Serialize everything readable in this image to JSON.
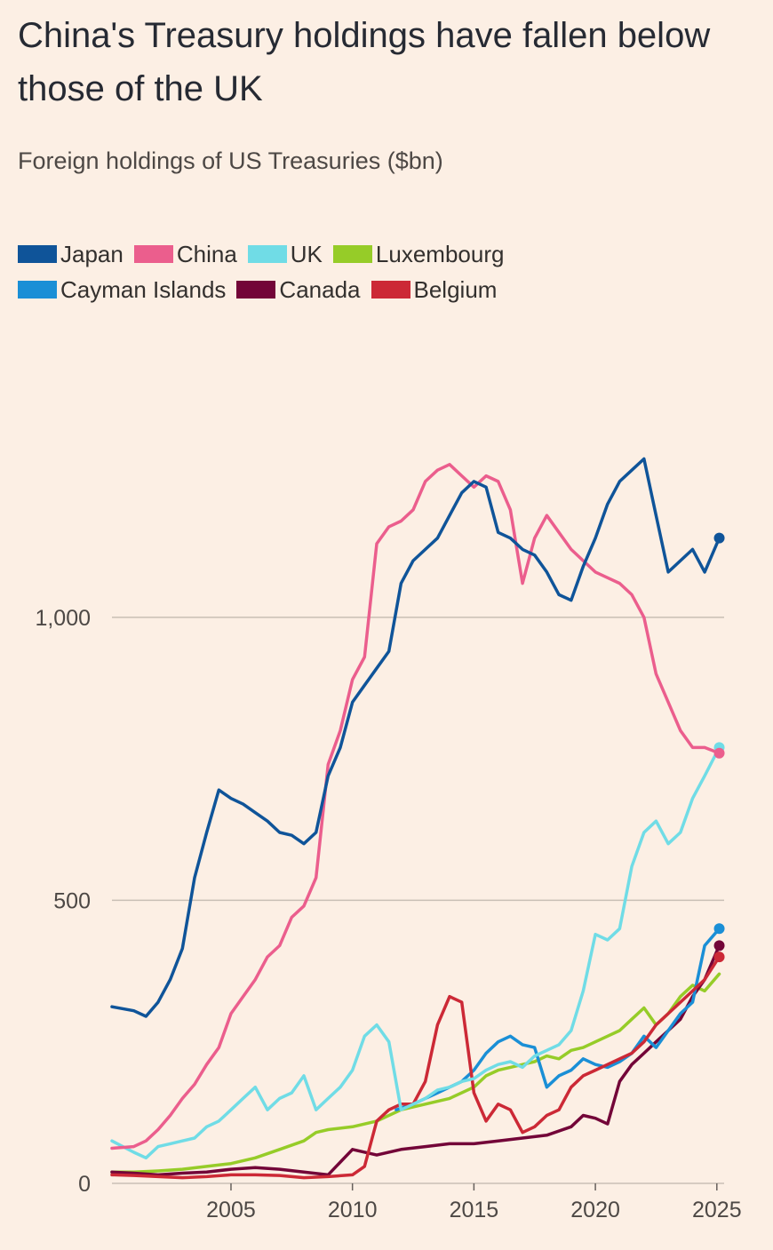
{
  "header": {
    "title": "China's Treasury holdings have fallen below those of the UK",
    "subtitle": "Foreign holdings of US Treasuries ($bn)"
  },
  "legend": [
    {
      "label": "Japan",
      "color": "#0f5499"
    },
    {
      "label": "China",
      "color": "#eb5e8d"
    },
    {
      "label": "UK",
      "color": "#70dce6"
    },
    {
      "label": "Luxembourg",
      "color": "#96cc28"
    },
    {
      "label": "Cayman Islands",
      "color": "#1a8fd6"
    },
    {
      "label": "Canada",
      "color": "#730538"
    },
    {
      "label": "Belgium",
      "color": "#cc2936"
    }
  ],
  "chart_data": {
    "type": "line",
    "title": "China's Treasury holdings have fallen below those of the UK",
    "subtitle": "Foreign holdings of US Treasuries ($bn)",
    "xlim": [
      2000.1,
      2025.3
    ],
    "ylim": [
      0,
      1400
    ],
    "x_ticks": [
      2005,
      2010,
      2015,
      2020,
      2025
    ],
    "x_tick_labels": [
      "2005",
      "2010",
      "2015",
      "2020",
      "2025"
    ],
    "y_ticks": [
      0,
      500,
      1000
    ],
    "y_tick_labels": [
      "0",
      "500",
      "1,000"
    ],
    "grid": true,
    "legend_position": "top-left",
    "series": [
      {
        "name": "Japan",
        "color": "#0f5499",
        "end_marker": true,
        "x": [
          2000.1,
          2001.0,
          2001.5,
          2002.0,
          2002.5,
          2003.0,
          2003.5,
          2004.0,
          2004.5,
          2005.0,
          2005.5,
          2006.0,
          2006.5,
          2007.0,
          2007.5,
          2008.0,
          2008.5,
          2009.0,
          2009.5,
          2010.0,
          2010.5,
          2011.0,
          2011.5,
          2012.0,
          2012.5,
          2013.0,
          2013.5,
          2014.0,
          2014.5,
          2015.0,
          2015.5,
          2016.0,
          2016.5,
          2017.0,
          2017.5,
          2018.0,
          2018.5,
          2019.0,
          2019.5,
          2020.0,
          2020.5,
          2021.0,
          2021.5,
          2022.0,
          2022.5,
          2023.0,
          2023.5,
          2024.0,
          2024.5,
          2025.1
        ],
        "values": [
          312,
          305,
          295,
          320,
          360,
          415,
          540,
          620,
          695,
          680,
          670,
          655,
          640,
          620,
          615,
          600,
          620,
          720,
          770,
          850,
          880,
          910,
          940,
          1060,
          1100,
          1120,
          1140,
          1180,
          1220,
          1240,
          1230,
          1150,
          1140,
          1120,
          1110,
          1080,
          1040,
          1030,
          1090,
          1140,
          1200,
          1240,
          1260,
          1280,
          1180,
          1080,
          1100,
          1120,
          1080,
          1140
        ]
      },
      {
        "name": "China",
        "color": "#eb5e8d",
        "end_marker": true,
        "x": [
          2000.1,
          2001.0,
          2001.5,
          2002.0,
          2002.5,
          2003.0,
          2003.5,
          2004.0,
          2004.5,
          2005.0,
          2005.5,
          2006.0,
          2006.5,
          2007.0,
          2007.5,
          2008.0,
          2008.5,
          2009.0,
          2009.5,
          2010.0,
          2010.5,
          2011.0,
          2011.5,
          2012.0,
          2012.5,
          2013.0,
          2013.5,
          2014.0,
          2014.5,
          2015.0,
          2015.5,
          2016.0,
          2016.5,
          2017.0,
          2017.5,
          2018.0,
          2018.5,
          2019.0,
          2019.5,
          2020.0,
          2020.5,
          2021.0,
          2021.5,
          2022.0,
          2022.5,
          2023.0,
          2023.5,
          2024.0,
          2024.5,
          2025.1
        ],
        "values": [
          62,
          65,
          75,
          95,
          120,
          150,
          175,
          210,
          240,
          300,
          330,
          360,
          400,
          420,
          470,
          490,
          540,
          740,
          800,
          890,
          930,
          1130,
          1160,
          1170,
          1190,
          1240,
          1260,
          1270,
          1250,
          1230,
          1250,
          1240,
          1190,
          1060,
          1140,
          1180,
          1150,
          1120,
          1100,
          1080,
          1070,
          1060,
          1040,
          1000,
          900,
          850,
          800,
          770,
          770,
          760
        ]
      },
      {
        "name": "UK",
        "color": "#70dce6",
        "end_marker": true,
        "x": [
          2000.1,
          2001.0,
          2001.5,
          2002.0,
          2002.5,
          2003.0,
          2003.5,
          2004.0,
          2004.5,
          2005.0,
          2005.5,
          2006.0,
          2006.5,
          2007.0,
          2007.5,
          2008.0,
          2008.5,
          2009.0,
          2009.5,
          2010.0,
          2010.5,
          2011.0,
          2011.5,
          2012.0,
          2012.5,
          2013.0,
          2013.5,
          2014.0,
          2014.5,
          2015.0,
          2015.5,
          2016.0,
          2016.5,
          2017.0,
          2017.5,
          2018.0,
          2018.5,
          2019.0,
          2019.5,
          2020.0,
          2020.5,
          2021.0,
          2021.5,
          2022.0,
          2022.5,
          2023.0,
          2023.5,
          2024.0,
          2024.5,
          2025.1
        ],
        "values": [
          75,
          55,
          45,
          65,
          70,
          75,
          80,
          100,
          110,
          130,
          150,
          170,
          130,
          150,
          160,
          190,
          130,
          150,
          170,
          200,
          260,
          280,
          250,
          130,
          140,
          150,
          165,
          170,
          180,
          185,
          200,
          210,
          215,
          205,
          225,
          235,
          245,
          270,
          340,
          440,
          430,
          450,
          560,
          620,
          640,
          600,
          620,
          680,
          720,
          770
        ]
      },
      {
        "name": "Luxembourg",
        "color": "#96cc28",
        "end_marker": false,
        "x": [
          2000.1,
          2001.0,
          2002.0,
          2003.0,
          2004.0,
          2005.0,
          2006.0,
          2007.0,
          2008.0,
          2008.5,
          2009.0,
          2010.0,
          2011.0,
          2012.0,
          2013.0,
          2014.0,
          2015.0,
          2015.5,
          2016.0,
          2016.5,
          2017.0,
          2017.5,
          2018.0,
          2018.5,
          2019.0,
          2019.5,
          2020.0,
          2020.5,
          2021.0,
          2021.5,
          2022.0,
          2022.5,
          2023.0,
          2023.5,
          2024.0,
          2024.5,
          2025.1
        ],
        "values": [
          20,
          20,
          22,
          25,
          30,
          35,
          45,
          60,
          75,
          90,
          95,
          100,
          110,
          130,
          140,
          150,
          170,
          190,
          200,
          205,
          210,
          215,
          225,
          220,
          235,
          240,
          250,
          260,
          270,
          290,
          310,
          280,
          300,
          330,
          350,
          340,
          370
        ]
      },
      {
        "name": "Cayman Islands",
        "color": "#1a8fd6",
        "end_marker": true,
        "x": [
          2011.8,
          2012.5,
          2013.0,
          2013.5,
          2014.0,
          2014.5,
          2015.0,
          2015.5,
          2016.0,
          2016.5,
          2017.0,
          2017.5,
          2018.0,
          2018.5,
          2019.0,
          2019.5,
          2020.0,
          2020.5,
          2021.0,
          2021.5,
          2022.0,
          2022.5,
          2023.0,
          2023.5,
          2024.0,
          2024.5,
          2025.1
        ],
        "values": [
          130,
          140,
          150,
          160,
          170,
          180,
          200,
          230,
          250,
          260,
          245,
          240,
          170,
          190,
          200,
          220,
          210,
          205,
          215,
          230,
          260,
          240,
          270,
          300,
          320,
          420,
          450
        ]
      },
      {
        "name": "Canada",
        "color": "#730538",
        "end_marker": true,
        "x": [
          2000.1,
          2001.0,
          2002.0,
          2003.0,
          2004.0,
          2005.0,
          2006.0,
          2007.0,
          2008.0,
          2009.0,
          2010.0,
          2011.0,
          2012.0,
          2013.0,
          2014.0,
          2015.0,
          2016.0,
          2017.0,
          2018.0,
          2019.0,
          2019.5,
          2020.0,
          2020.5,
          2021.0,
          2021.5,
          2022.0,
          2022.5,
          2023.0,
          2023.5,
          2024.0,
          2024.5,
          2025.1
        ],
        "values": [
          20,
          18,
          15,
          18,
          20,
          25,
          28,
          25,
          20,
          15,
          60,
          50,
          60,
          65,
          70,
          70,
          75,
          80,
          85,
          100,
          120,
          115,
          105,
          180,
          210,
          230,
          250,
          270,
          290,
          330,
          360,
          420
        ]
      },
      {
        "name": "Belgium",
        "color": "#cc2936",
        "end_marker": true,
        "x": [
          2000.1,
          2001.0,
          2002.0,
          2003.0,
          2004.0,
          2005.0,
          2006.0,
          2007.0,
          2008.0,
          2009.0,
          2010.0,
          2010.5,
          2011.0,
          2011.5,
          2012.0,
          2012.5,
          2013.0,
          2013.5,
          2014.0,
          2014.5,
          2015.0,
          2015.5,
          2016.0,
          2016.5,
          2017.0,
          2017.5,
          2018.0,
          2018.5,
          2019.0,
          2019.5,
          2020.0,
          2020.5,
          2021.0,
          2021.5,
          2022.0,
          2022.5,
          2023.0,
          2023.5,
          2024.0,
          2024.5,
          2025.1
        ],
        "values": [
          15,
          14,
          12,
          10,
          12,
          15,
          15,
          14,
          10,
          12,
          15,
          30,
          110,
          130,
          140,
          140,
          180,
          280,
          330,
          320,
          160,
          110,
          140,
          130,
          90,
          100,
          120,
          130,
          170,
          190,
          200,
          210,
          220,
          230,
          250,
          280,
          300,
          320,
          340,
          360,
          400
        ]
      }
    ]
  }
}
